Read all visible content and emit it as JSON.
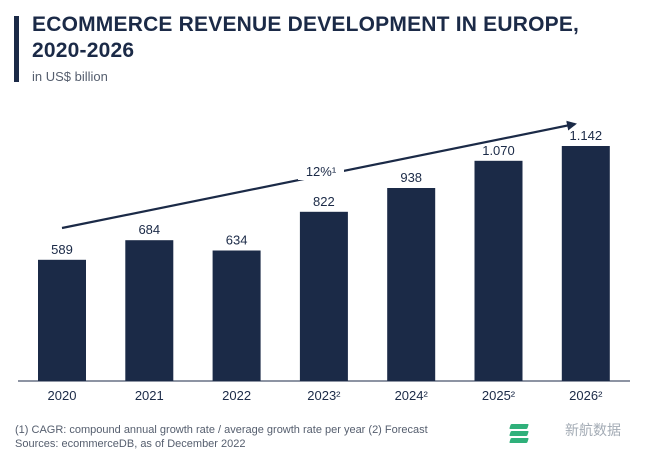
{
  "title_lines": [
    "ECOMMERCE REVENUE DEVELOPMENT IN EUROPE,",
    "2020-2026"
  ],
  "subtitle": "in US$ billion",
  "footnotes": [
    "(1) CAGR: compound annual growth rate / average growth rate per year (2) Forecast",
    "Sources: ecommerceDB, as of December 2022"
  ],
  "logo": {
    "name": "ecommerceDB",
    "icon": "stacked-layers-icon"
  },
  "watermark": "新航数据",
  "colors": {
    "bar": "#1b2a47",
    "accent": "#2fb07a",
    "text": "#1b2a47",
    "muted": "#555e6e"
  },
  "chart_data": {
    "type": "bar",
    "title": "ECOMMERCE REVENUE DEVELOPMENT IN EUROPE, 2020-2026",
    "ylabel": "in US$ billion",
    "categories": [
      "2020",
      "2021",
      "2022",
      "2023²",
      "2024²",
      "2025²",
      "2026²"
    ],
    "values": [
      589,
      684,
      634,
      822,
      938,
      1070,
      1142
    ],
    "value_labels": [
      "589",
      "684",
      "634",
      "822",
      "938",
      "1.070",
      "1.142"
    ],
    "ylim": [
      0,
      1300
    ],
    "grid": false,
    "trend_annotation": "12%¹"
  }
}
